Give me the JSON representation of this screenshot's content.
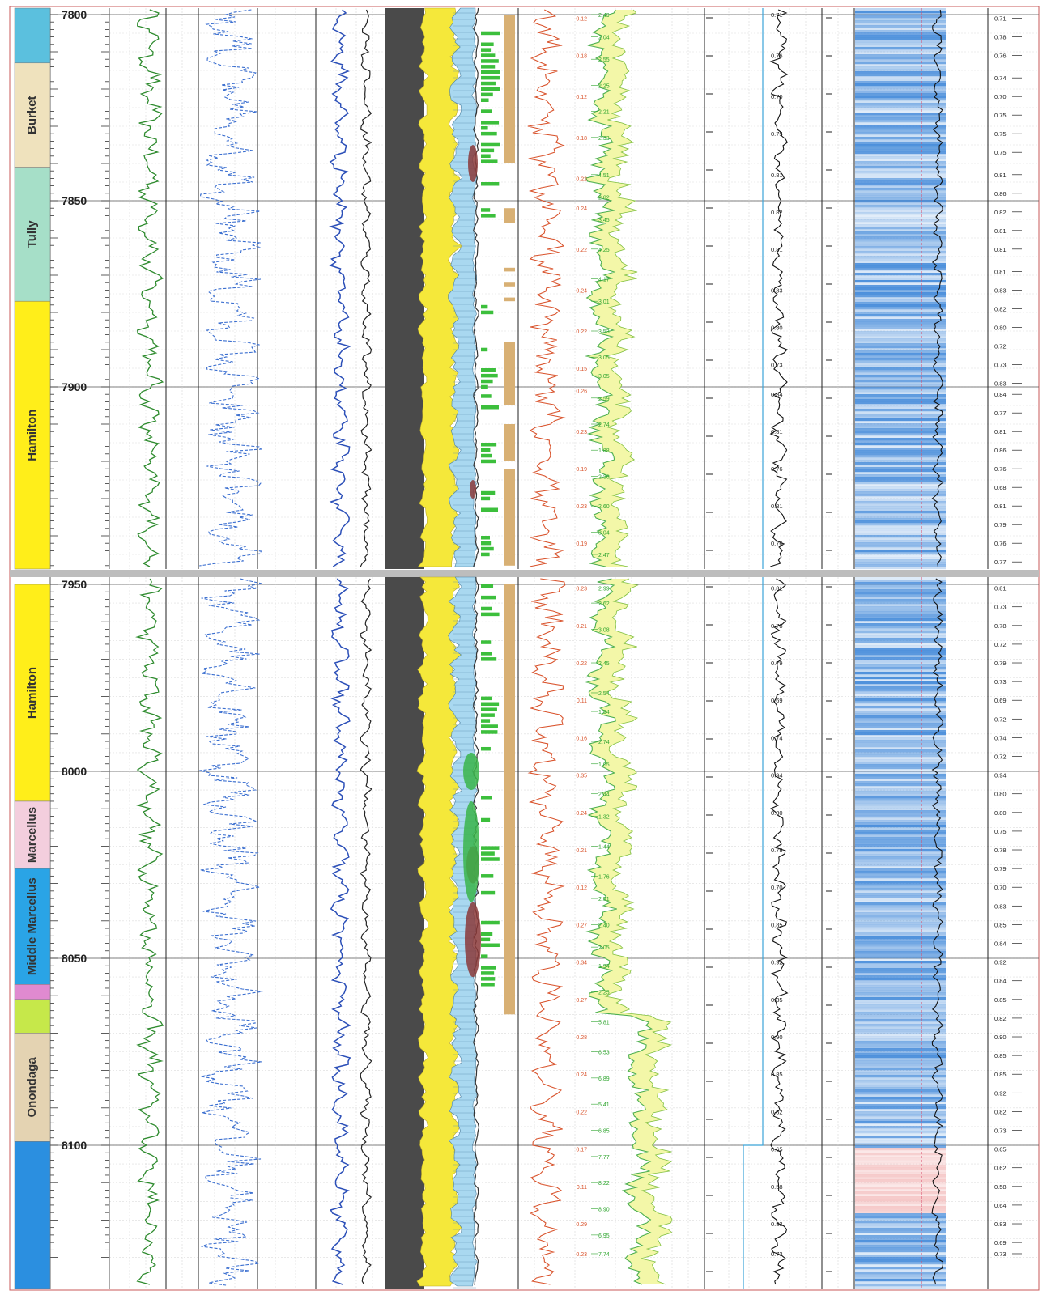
{
  "chart_data": {
    "type": "well-log",
    "depth_unit": "",
    "panels": [
      {
        "top_depth": 7800,
        "bottom_depth": 7950
      },
      {
        "top_depth": 7950,
        "bottom_depth": 8130
      }
    ],
    "depth_ticks": [
      7800,
      7850,
      7900,
      7950,
      8000,
      8050,
      8100
    ],
    "formations": [
      {
        "name": "",
        "top": 7800,
        "base": 7813,
        "color": "#5bc0de"
      },
      {
        "name": "Burket",
        "top": 7813,
        "base": 7841,
        "color": "#efe2bd"
      },
      {
        "name": "Tully",
        "top": 7841,
        "base": 7877,
        "color": "#a6dfc8"
      },
      {
        "name": "Hamilton",
        "top": 7877,
        "base": 7950,
        "color": "#ffee1a"
      },
      {
        "name": "Hamilton",
        "top": 7950,
        "base": 8008,
        "color": "#ffee1a"
      },
      {
        "name": "Marcellus",
        "top": 8008,
        "base": 8026,
        "color": "#f3cedd"
      },
      {
        "name": "Middle Marcellus",
        "top": 8026,
        "base": 8057,
        "color": "#2aa4e6"
      },
      {
        "name": "",
        "top": 8057,
        "base": 8061,
        "color": "#e08ad0"
      },
      {
        "name": "",
        "top": 8061,
        "base": 8070,
        "color": "#c6e84a"
      },
      {
        "name": "Onondaga",
        "top": 8070,
        "base": 8099,
        "color": "#e4d3b2"
      },
      {
        "name": "",
        "top": 8099,
        "base": 8130,
        "color": "#2b8fe0"
      }
    ],
    "porosity_track": {
      "color": "#d9532c",
      "labels": [
        {
          "depth": 7801,
          "value": "0.12"
        },
        {
          "depth": 7811,
          "value": "0.18"
        },
        {
          "depth": 7822,
          "value": "0.12"
        },
        {
          "depth": 7833,
          "value": "0.18"
        },
        {
          "depth": 7844,
          "value": "0.22"
        },
        {
          "depth": 7852,
          "value": "0.24"
        },
        {
          "depth": 7863,
          "value": "0.22"
        },
        {
          "depth": 7874,
          "value": "0.24"
        },
        {
          "depth": 7885,
          "value": "0.22"
        },
        {
          "depth": 7895,
          "value": "0.15"
        },
        {
          "depth": 7901,
          "value": "0.26"
        },
        {
          "depth": 7912,
          "value": "0.23"
        },
        {
          "depth": 7922,
          "value": "0.19"
        },
        {
          "depth": 7932,
          "value": "0.23"
        },
        {
          "depth": 7942,
          "value": "0.19"
        },
        {
          "depth": 7951,
          "value": "0.23"
        },
        {
          "depth": 7961,
          "value": "0.21"
        },
        {
          "depth": 7971,
          "value": "0.22"
        },
        {
          "depth": 7981,
          "value": "0.11"
        },
        {
          "depth": 7991,
          "value": "0.16"
        },
        {
          "depth": 8001,
          "value": "0.35"
        },
        {
          "depth": 8011,
          "value": "0.24"
        },
        {
          "depth": 8021,
          "value": "0.21"
        },
        {
          "depth": 8031,
          "value": "0.12"
        },
        {
          "depth": 8041,
          "value": "0.27"
        },
        {
          "depth": 8051,
          "value": "0.34"
        },
        {
          "depth": 8061,
          "value": "0.27"
        },
        {
          "depth": 8071,
          "value": "0.28"
        },
        {
          "depth": 8081,
          "value": "0.24"
        },
        {
          "depth": 8091,
          "value": "0.22"
        },
        {
          "depth": 8101,
          "value": "0.17"
        },
        {
          "depth": 8111,
          "value": "0.11"
        },
        {
          "depth": 8121,
          "value": "0.29"
        },
        {
          "depth": 8129,
          "value": "0.23"
        }
      ]
    },
    "mineral_track": {
      "color": "#2fa52f",
      "labels": [
        {
          "depth": 7800,
          "value": "2.49"
        },
        {
          "depth": 7806,
          "value": "2.04"
        },
        {
          "depth": 7812,
          "value": "2.55"
        },
        {
          "depth": 7819,
          "value": "2.25"
        },
        {
          "depth": 7826,
          "value": "2.21"
        },
        {
          "depth": 7833,
          "value": "2.33"
        },
        {
          "depth": 7843,
          "value": "4.51"
        },
        {
          "depth": 7849,
          "value": "2.82"
        },
        {
          "depth": 7855,
          "value": "3.45"
        },
        {
          "depth": 7863,
          "value": "4.25"
        },
        {
          "depth": 7871,
          "value": "4.17"
        },
        {
          "depth": 7877,
          "value": "3.01"
        },
        {
          "depth": 7885,
          "value": "3.53"
        },
        {
          "depth": 7892,
          "value": "3.05"
        },
        {
          "depth": 7897,
          "value": "3.05"
        },
        {
          "depth": 7903,
          "value": "2.59"
        },
        {
          "depth": 7910,
          "value": "2.74"
        },
        {
          "depth": 7917,
          "value": "1.88"
        },
        {
          "depth": 7924,
          "value": "2.36"
        },
        {
          "depth": 7932,
          "value": "2.60"
        },
        {
          "depth": 7939,
          "value": "3.04"
        },
        {
          "depth": 7945,
          "value": "2.47"
        },
        {
          "depth": 7951,
          "value": "2.99"
        },
        {
          "depth": 7955,
          "value": "2.62"
        },
        {
          "depth": 7962,
          "value": "3.08"
        },
        {
          "depth": 7971,
          "value": "2.45"
        },
        {
          "depth": 7979,
          "value": "2.54"
        },
        {
          "depth": 7984,
          "value": "1.94"
        },
        {
          "depth": 7992,
          "value": "2.74"
        },
        {
          "depth": 7998,
          "value": "1.05"
        },
        {
          "depth": 8006,
          "value": "2.44"
        },
        {
          "depth": 8012,
          "value": "1.32"
        },
        {
          "depth": 8020,
          "value": "1.44"
        },
        {
          "depth": 8028,
          "value": "1.76"
        },
        {
          "depth": 8034,
          "value": "2.51"
        },
        {
          "depth": 8041,
          "value": "2.40"
        },
        {
          "depth": 8047,
          "value": "2.05"
        },
        {
          "depth": 8052,
          "value": "1.94"
        },
        {
          "depth": 8059,
          "value": "2.25"
        },
        {
          "depth": 8067,
          "value": "5.81"
        },
        {
          "depth": 8075,
          "value": "6.53"
        },
        {
          "depth": 8082,
          "value": "6.89"
        },
        {
          "depth": 8089,
          "value": "5.41"
        },
        {
          "depth": 8096,
          "value": "6.85"
        },
        {
          "depth": 8103,
          "value": "7.77"
        },
        {
          "depth": 8110,
          "value": "8.22"
        },
        {
          "depth": 8117,
          "value": "8.90"
        },
        {
          "depth": 8124,
          "value": "6.95"
        },
        {
          "depth": 8129,
          "value": "7.74"
        }
      ]
    },
    "curve_track_a": {
      "labels": [
        {
          "depth": 7800,
          "value": "0.71"
        },
        {
          "depth": 7811,
          "value": "0.76"
        },
        {
          "depth": 7822,
          "value": "0.70"
        },
        {
          "depth": 7832,
          "value": "0.75"
        },
        {
          "depth": 7843,
          "value": "0.81"
        },
        {
          "depth": 7853,
          "value": "0.82"
        },
        {
          "depth": 7863,
          "value": "0.81"
        },
        {
          "depth": 7874,
          "value": "0.83"
        },
        {
          "depth": 7884,
          "value": "0.80"
        },
        {
          "depth": 7894,
          "value": "0.73"
        },
        {
          "depth": 7902,
          "value": "0.84"
        },
        {
          "depth": 7912,
          "value": "0.81"
        },
        {
          "depth": 7922,
          "value": "0.76"
        },
        {
          "depth": 7932,
          "value": "0.81"
        },
        {
          "depth": 7942,
          "value": "0.76"
        },
        {
          "depth": 7951,
          "value": "0.81"
        },
        {
          "depth": 7961,
          "value": "0.78"
        },
        {
          "depth": 7971,
          "value": "0.79"
        },
        {
          "depth": 7981,
          "value": "0.69"
        },
        {
          "depth": 7991,
          "value": "0.74"
        },
        {
          "depth": 8001,
          "value": "0.94"
        },
        {
          "depth": 8011,
          "value": "0.80"
        },
        {
          "depth": 8021,
          "value": "0.78"
        },
        {
          "depth": 8031,
          "value": "0.70"
        },
        {
          "depth": 8041,
          "value": "0.85"
        },
        {
          "depth": 8051,
          "value": "0.92"
        },
        {
          "depth": 8061,
          "value": "0.85"
        },
        {
          "depth": 8071,
          "value": "0.90"
        },
        {
          "depth": 8081,
          "value": "0.85"
        },
        {
          "depth": 8091,
          "value": "0.82"
        },
        {
          "depth": 8101,
          "value": "0.65"
        },
        {
          "depth": 8111,
          "value": "0.58"
        },
        {
          "depth": 8121,
          "value": "0.83"
        },
        {
          "depth": 8129,
          "value": "0.73"
        }
      ]
    },
    "curve_track_b": {
      "labels": [
        {
          "depth": 7801,
          "value": "0.71"
        },
        {
          "depth": 7806,
          "value": "0.78"
        },
        {
          "depth": 7811,
          "value": "0.76"
        },
        {
          "depth": 7817,
          "value": "0.74"
        },
        {
          "depth": 7822,
          "value": "0.70"
        },
        {
          "depth": 7827,
          "value": "0.75"
        },
        {
          "depth": 7832,
          "value": "0.75"
        },
        {
          "depth": 7837,
          "value": "0.75"
        },
        {
          "depth": 7843,
          "value": "0.81"
        },
        {
          "depth": 7848,
          "value": "0.86"
        },
        {
          "depth": 7853,
          "value": "0.82"
        },
        {
          "depth": 7858,
          "value": "0.81"
        },
        {
          "depth": 7863,
          "value": "0.81"
        },
        {
          "depth": 7869,
          "value": "0.81"
        },
        {
          "depth": 7874,
          "value": "0.83"
        },
        {
          "depth": 7879,
          "value": "0.82"
        },
        {
          "depth": 7884,
          "value": "0.80"
        },
        {
          "depth": 7889,
          "value": "0.72"
        },
        {
          "depth": 7894,
          "value": "0.73"
        },
        {
          "depth": 7899,
          "value": "0.83"
        },
        {
          "depth": 7902,
          "value": "0.84"
        },
        {
          "depth": 7907,
          "value": "0.77"
        },
        {
          "depth": 7912,
          "value": "0.81"
        },
        {
          "depth": 7917,
          "value": "0.86"
        },
        {
          "depth": 7922,
          "value": "0.76"
        },
        {
          "depth": 7927,
          "value": "0.68"
        },
        {
          "depth": 7932,
          "value": "0.81"
        },
        {
          "depth": 7937,
          "value": "0.79"
        },
        {
          "depth": 7942,
          "value": "0.76"
        },
        {
          "depth": 7947,
          "value": "0.77"
        },
        {
          "depth": 7951,
          "value": "0.81"
        },
        {
          "depth": 7956,
          "value": "0.73"
        },
        {
          "depth": 7961,
          "value": "0.78"
        },
        {
          "depth": 7966,
          "value": "0.72"
        },
        {
          "depth": 7971,
          "value": "0.79"
        },
        {
          "depth": 7976,
          "value": "0.73"
        },
        {
          "depth": 7981,
          "value": "0.69"
        },
        {
          "depth": 7986,
          "value": "0.72"
        },
        {
          "depth": 7991,
          "value": "0.74"
        },
        {
          "depth": 7996,
          "value": "0.72"
        },
        {
          "depth": 8001,
          "value": "0.94"
        },
        {
          "depth": 8006,
          "value": "0.80"
        },
        {
          "depth": 8011,
          "value": "0.80"
        },
        {
          "depth": 8016,
          "value": "0.75"
        },
        {
          "depth": 8021,
          "value": "0.78"
        },
        {
          "depth": 8026,
          "value": "0.79"
        },
        {
          "depth": 8031,
          "value": "0.70"
        },
        {
          "depth": 8036,
          "value": "0.83"
        },
        {
          "depth": 8041,
          "value": "0.85"
        },
        {
          "depth": 8046,
          "value": "0.84"
        },
        {
          "depth": 8051,
          "value": "0.92"
        },
        {
          "depth": 8056,
          "value": "0.84"
        },
        {
          "depth": 8061,
          "value": "0.85"
        },
        {
          "depth": 8066,
          "value": "0.82"
        },
        {
          "depth": 8071,
          "value": "0.90"
        },
        {
          "depth": 8076,
          "value": "0.85"
        },
        {
          "depth": 8081,
          "value": "0.85"
        },
        {
          "depth": 8086,
          "value": "0.92"
        },
        {
          "depth": 8091,
          "value": "0.82"
        },
        {
          "depth": 8096,
          "value": "0.73"
        },
        {
          "depth": 8101,
          "value": "0.65"
        },
        {
          "depth": 8106,
          "value": "0.62"
        },
        {
          "depth": 8111,
          "value": "0.58"
        },
        {
          "depth": 8116,
          "value": "0.64"
        },
        {
          "depth": 8121,
          "value": "0.83"
        },
        {
          "depth": 8126,
          "value": "0.69"
        },
        {
          "depth": 8129,
          "value": "0.73"
        }
      ]
    },
    "colors": {
      "gamma": "#2e8b2e",
      "resistivity_dashed": "#3b6fd0",
      "density": "#2b4fb8",
      "neutron": "#222222",
      "shale": "#4a4a4a",
      "yellow": "#f5e83a",
      "calcite": "#a9d8f0",
      "kerogen": "#8b3a3a",
      "pay_green": "#3cbf3c",
      "tan_flag": "#d8b074",
      "red_curve": "#d9532c",
      "green_curve": "#4caf50",
      "green_fill": "#f3f7a8",
      "image_blue": "#3d86d8",
      "image_pink": "#f2b8b8"
    }
  }
}
